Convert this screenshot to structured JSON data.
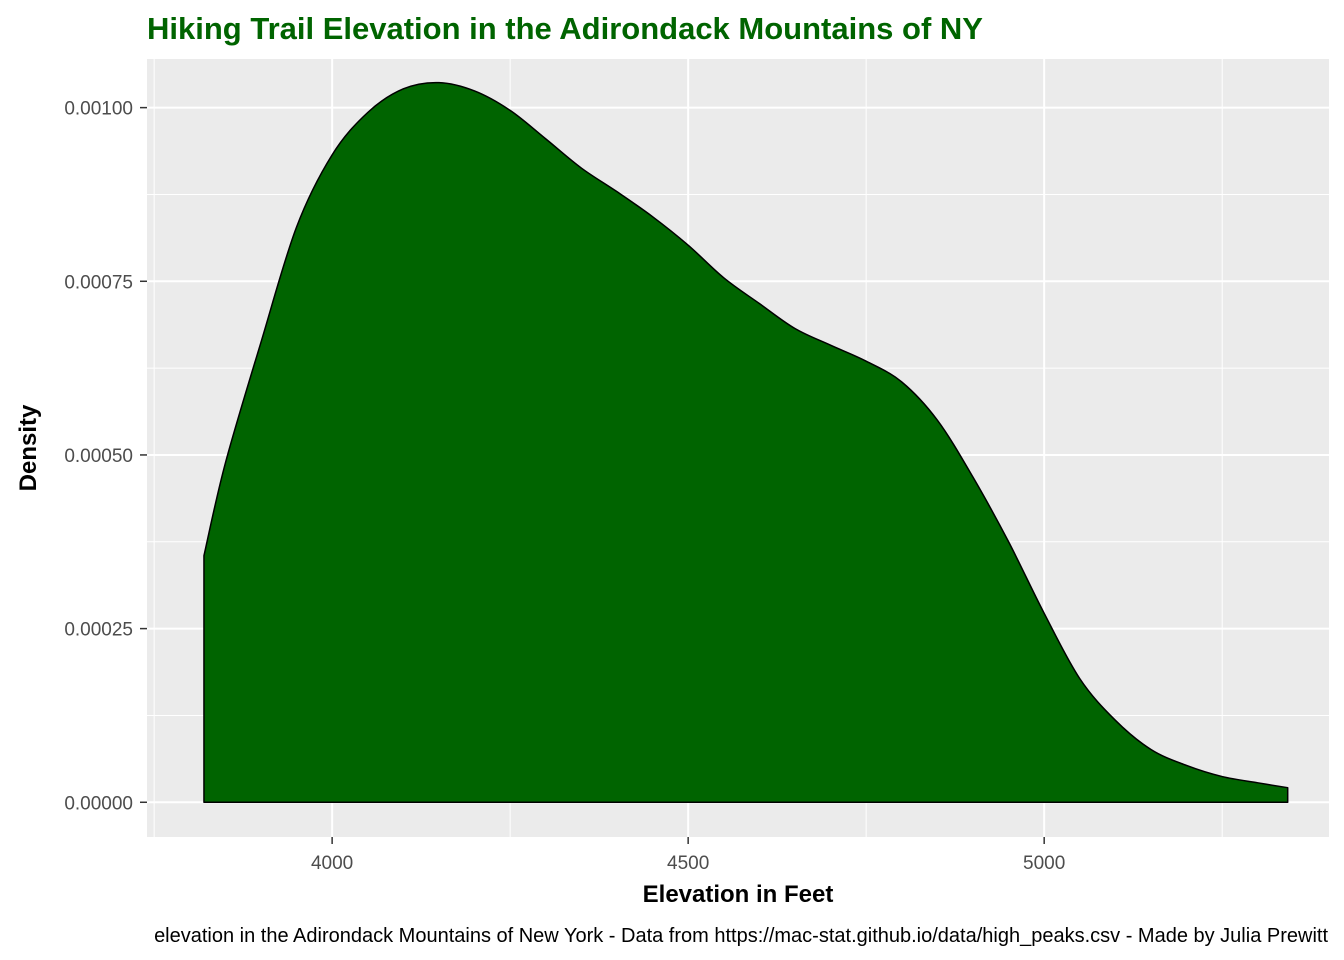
{
  "chart_data": {
    "type": "area",
    "title": "Hiking Trail Elevation in the Adirondack Mountains of NY",
    "xlabel": "Elevation in Feet",
    "ylabel": "Density",
    "caption": "elevation in the Adirondack Mountains of New York - Data from https://mac-stat.github.io/data/high_peaks.csv - Made by Julia Prewitt",
    "xlim": [
      3740,
      5400
    ],
    "ylim": [
      -5e-05,
      0.00107
    ],
    "x_ticks": [
      {
        "value": 4000,
        "label": "4000"
      },
      {
        "value": 4500,
        "label": "4500"
      },
      {
        "value": 5000,
        "label": "5000"
      }
    ],
    "x_minor_ticks": [
      3750,
      4250,
      4750,
      5250
    ],
    "y_ticks": [
      {
        "value": 0,
        "label": "0.00000"
      },
      {
        "value": 0.00025,
        "label": "0.00025"
      },
      {
        "value": 0.0005,
        "label": "0.00050"
      },
      {
        "value": 0.00075,
        "label": "0.00075"
      },
      {
        "value": 0.001,
        "label": "0.00100"
      }
    ],
    "y_minor_ticks": [
      0.000125,
      0.000375,
      0.000625,
      0.000875
    ],
    "grid": true,
    "legend": "none",
    "series": [
      {
        "x": [
          3820,
          3850,
          3900,
          3950,
          4000,
          4050,
          4100,
          4150,
          4200,
          4250,
          4300,
          4350,
          4400,
          4450,
          4500,
          4550,
          4600,
          4650,
          4700,
          4750,
          4800,
          4850,
          4900,
          4950,
          5000,
          5050,
          5100,
          5150,
          5200,
          5250,
          5300,
          5342
        ],
        "y": [
          0.000355,
          0.000488,
          0.000662,
          0.000828,
          0.000932,
          0.000993,
          0.001027,
          0.001036,
          0.001024,
          0.000996,
          0.000955,
          0.000913,
          0.000879,
          0.000843,
          0.000802,
          0.000755,
          0.000718,
          0.000682,
          0.000658,
          0.000635,
          0.000605,
          0.00055,
          0.000468,
          0.000375,
          0.000272,
          0.000178,
          0.000118,
          7.6e-05,
          5.3e-05,
          3.7e-05,
          2.8e-05,
          2.1e-05
        ]
      }
    ],
    "colors": {
      "fill": "#006400",
      "line": "#000000",
      "panel": "#ebebeb",
      "grid": "#ffffff",
      "title": "#006400",
      "tick_label": "#4d4d4d",
      "tick_mark": "#333333"
    }
  }
}
